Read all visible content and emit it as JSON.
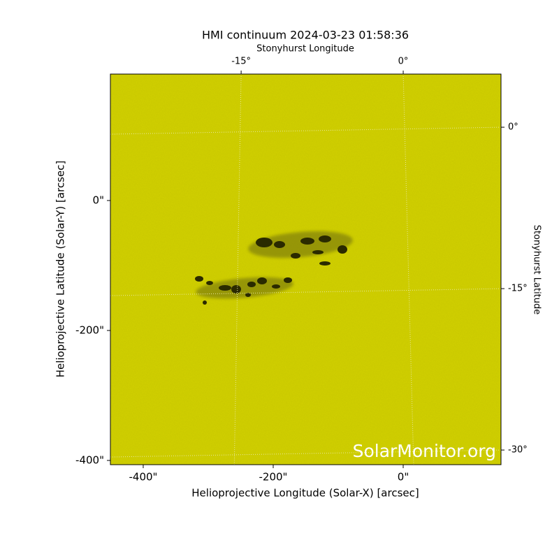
{
  "chart_data": {
    "type": "image",
    "title": "HMI continuum 2024-03-23 01:58:36",
    "xlabel": "Helioprojective Longitude (Solar-X) [arcsec]",
    "ylabel": "Helioprojective Latitude (Solar-Y) [arcsec]",
    "x2label": "Stonyhurst Longitude",
    "y2label": "Stonyhurst Latitude",
    "watermark": "SolarMonitor.org",
    "color": "#c9c800",
    "xlim": [
      -450.5,
      150.5
    ],
    "ylim": [
      -406.5,
      194.6
    ],
    "xticks": [
      {
        "value": -400,
        "label": "-400\""
      },
      {
        "value": -200,
        "label": "-200\""
      },
      {
        "value": 0,
        "label": "0\""
      }
    ],
    "yticks": [
      {
        "value": -400,
        "label": "-400\""
      },
      {
        "value": -200,
        "label": "-200\""
      },
      {
        "value": 0,
        "label": "0\""
      }
    ],
    "x2lim": [
      -27.1,
      9.05
    ],
    "x2ticks": [
      {
        "value": -15,
        "label": "-15°"
      },
      {
        "value": 0,
        "label": "0°"
      }
    ],
    "y2lim": [
      -31.36,
      4.94
    ],
    "y2ticks": [
      {
        "value": 0,
        "label": "0°"
      },
      {
        "value": -15,
        "label": "-15°"
      },
      {
        "value": -30,
        "label": "-30°"
      }
    ],
    "grid": true
  }
}
